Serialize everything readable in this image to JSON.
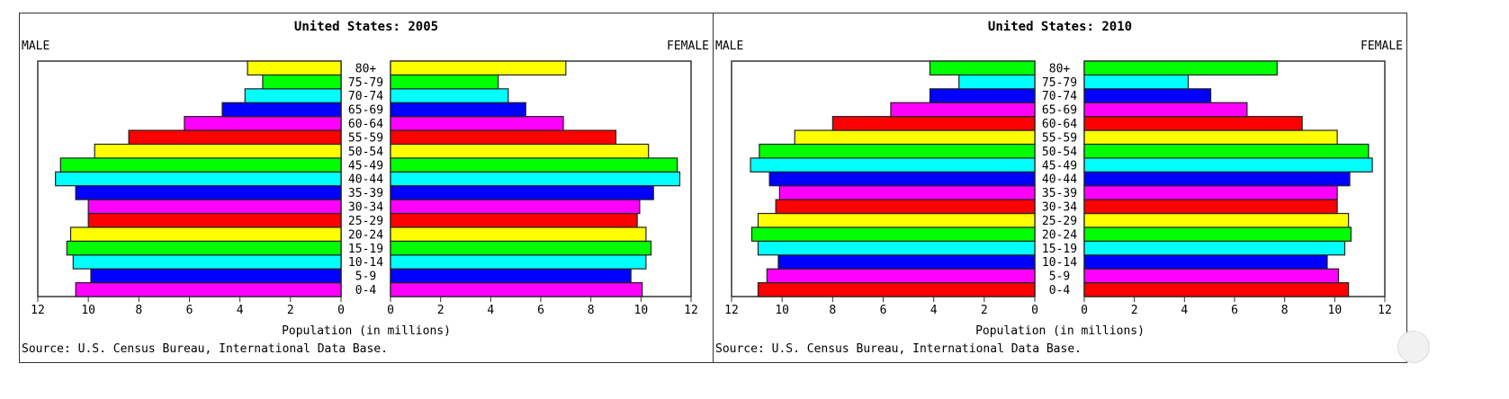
{
  "chart_data": [
    {
      "type": "bar",
      "title": "United States: 2005",
      "left_label": "MALE",
      "right_label": "FEMALE",
      "xlabel": "Population (in millions)",
      "source": "Source: U.S. Census Bureau, International Data Base.",
      "xlim": [
        0,
        12
      ],
      "ticks": [
        0,
        2,
        4,
        6,
        8,
        10,
        12
      ],
      "categories": [
        "0-4",
        "5-9",
        "10-14",
        "15-19",
        "20-24",
        "25-29",
        "30-34",
        "35-39",
        "40-44",
        "45-49",
        "50-54",
        "55-59",
        "60-64",
        "65-69",
        "70-74",
        "75-79",
        "80+"
      ],
      "series": [
        {
          "name": "MALE",
          "values": [
            10.5,
            9.9,
            10.6,
            10.85,
            10.7,
            10.0,
            10.0,
            10.5,
            11.3,
            11.1,
            9.75,
            8.4,
            6.2,
            4.7,
            3.8,
            3.1,
            3.7
          ]
        },
        {
          "name": "FEMALE",
          "values": [
            10.05,
            9.6,
            10.2,
            10.4,
            10.2,
            9.85,
            9.95,
            10.5,
            11.55,
            11.45,
            10.3,
            9.0,
            6.9,
            5.4,
            4.7,
            4.3,
            7.0
          ]
        }
      ],
      "colors": [
        "#ff00ff",
        "#0000ff",
        "#00ffff",
        "#00ff00",
        "#ffff00",
        "#ff0000"
      ]
    },
    {
      "type": "bar",
      "title": "United States: 2010",
      "left_label": "MALE",
      "right_label": "FEMALE",
      "xlabel": "Population (in millions)",
      "source": "Source: U.S. Census Bureau, International Data Base.",
      "xlim": [
        0,
        12
      ],
      "ticks": [
        0,
        2,
        4,
        6,
        8,
        10,
        12
      ],
      "categories": [
        "0-4",
        "5-9",
        "10-14",
        "15-19",
        "20-24",
        "25-29",
        "30-34",
        "35-39",
        "40-44",
        "45-49",
        "50-54",
        "55-59",
        "60-64",
        "65-69",
        "70-74",
        "75-79",
        "80+"
      ],
      "series": [
        {
          "name": "MALE",
          "values": [
            10.95,
            10.6,
            10.15,
            10.95,
            11.2,
            10.95,
            10.25,
            10.1,
            10.5,
            11.25,
            10.9,
            9.5,
            8.0,
            5.7,
            4.15,
            3.0,
            4.15
          ]
        },
        {
          "name": "FEMALE",
          "values": [
            10.55,
            10.15,
            9.7,
            10.4,
            10.65,
            10.55,
            10.1,
            10.1,
            10.6,
            11.5,
            11.35,
            10.1,
            8.7,
            6.5,
            5.05,
            4.15,
            7.7
          ]
        }
      ],
      "colors": [
        "#ff0000",
        "#ff00ff",
        "#0000ff",
        "#00ffff",
        "#00ff00",
        "#ffff00"
      ]
    }
  ]
}
